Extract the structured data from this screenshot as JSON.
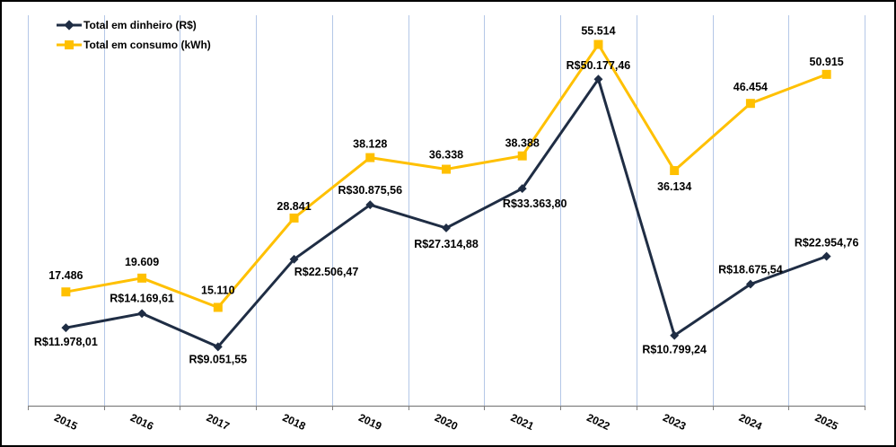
{
  "chart_data": {
    "type": "line",
    "title": "",
    "xlabel": "",
    "ylabel": "",
    "ylim": [
      0,
      60000
    ],
    "grid": "vertical",
    "legend": "top-left",
    "categories": [
      "2015",
      "2016",
      "2017",
      "2018",
      "2019",
      "2020",
      "2021",
      "2022",
      "2023",
      "2024",
      "2025"
    ],
    "series": [
      {
        "name": "Total em dinheiro (R$)",
        "color": "#1F2D44",
        "marker": "diamond",
        "values": [
          11978.01,
          14169.61,
          9051.55,
          22506.47,
          30875.56,
          27314.88,
          33363.8,
          50177.46,
          10799.24,
          18675.54,
          22954.76
        ],
        "labels": [
          "R$11.978,01",
          "R$14.169,61",
          "R$9.051,55",
          "R$22.506,47",
          "R$30.875,56",
          "R$27.314,88",
          "R$33.363,80",
          "R$50.177,46",
          "R$10.799,24",
          "R$18.675,54",
          "R$22.954,76"
        ]
      },
      {
        "name": "Total em consumo (kWh)",
        "color": "#FFC000",
        "marker": "square",
        "values": [
          17486,
          19609,
          15110,
          28841,
          38128,
          36338,
          38388,
          55514,
          36134,
          46454,
          50915
        ],
        "labels": [
          "17.486",
          "19.609",
          "15.110",
          "28.841",
          "38.128",
          "36.338",
          "38.388",
          "55.514",
          "36.134",
          "46.454",
          "50.915"
        ]
      }
    ]
  },
  "colors": {
    "grid": "#B4C7E7",
    "axis": "#808080"
  }
}
